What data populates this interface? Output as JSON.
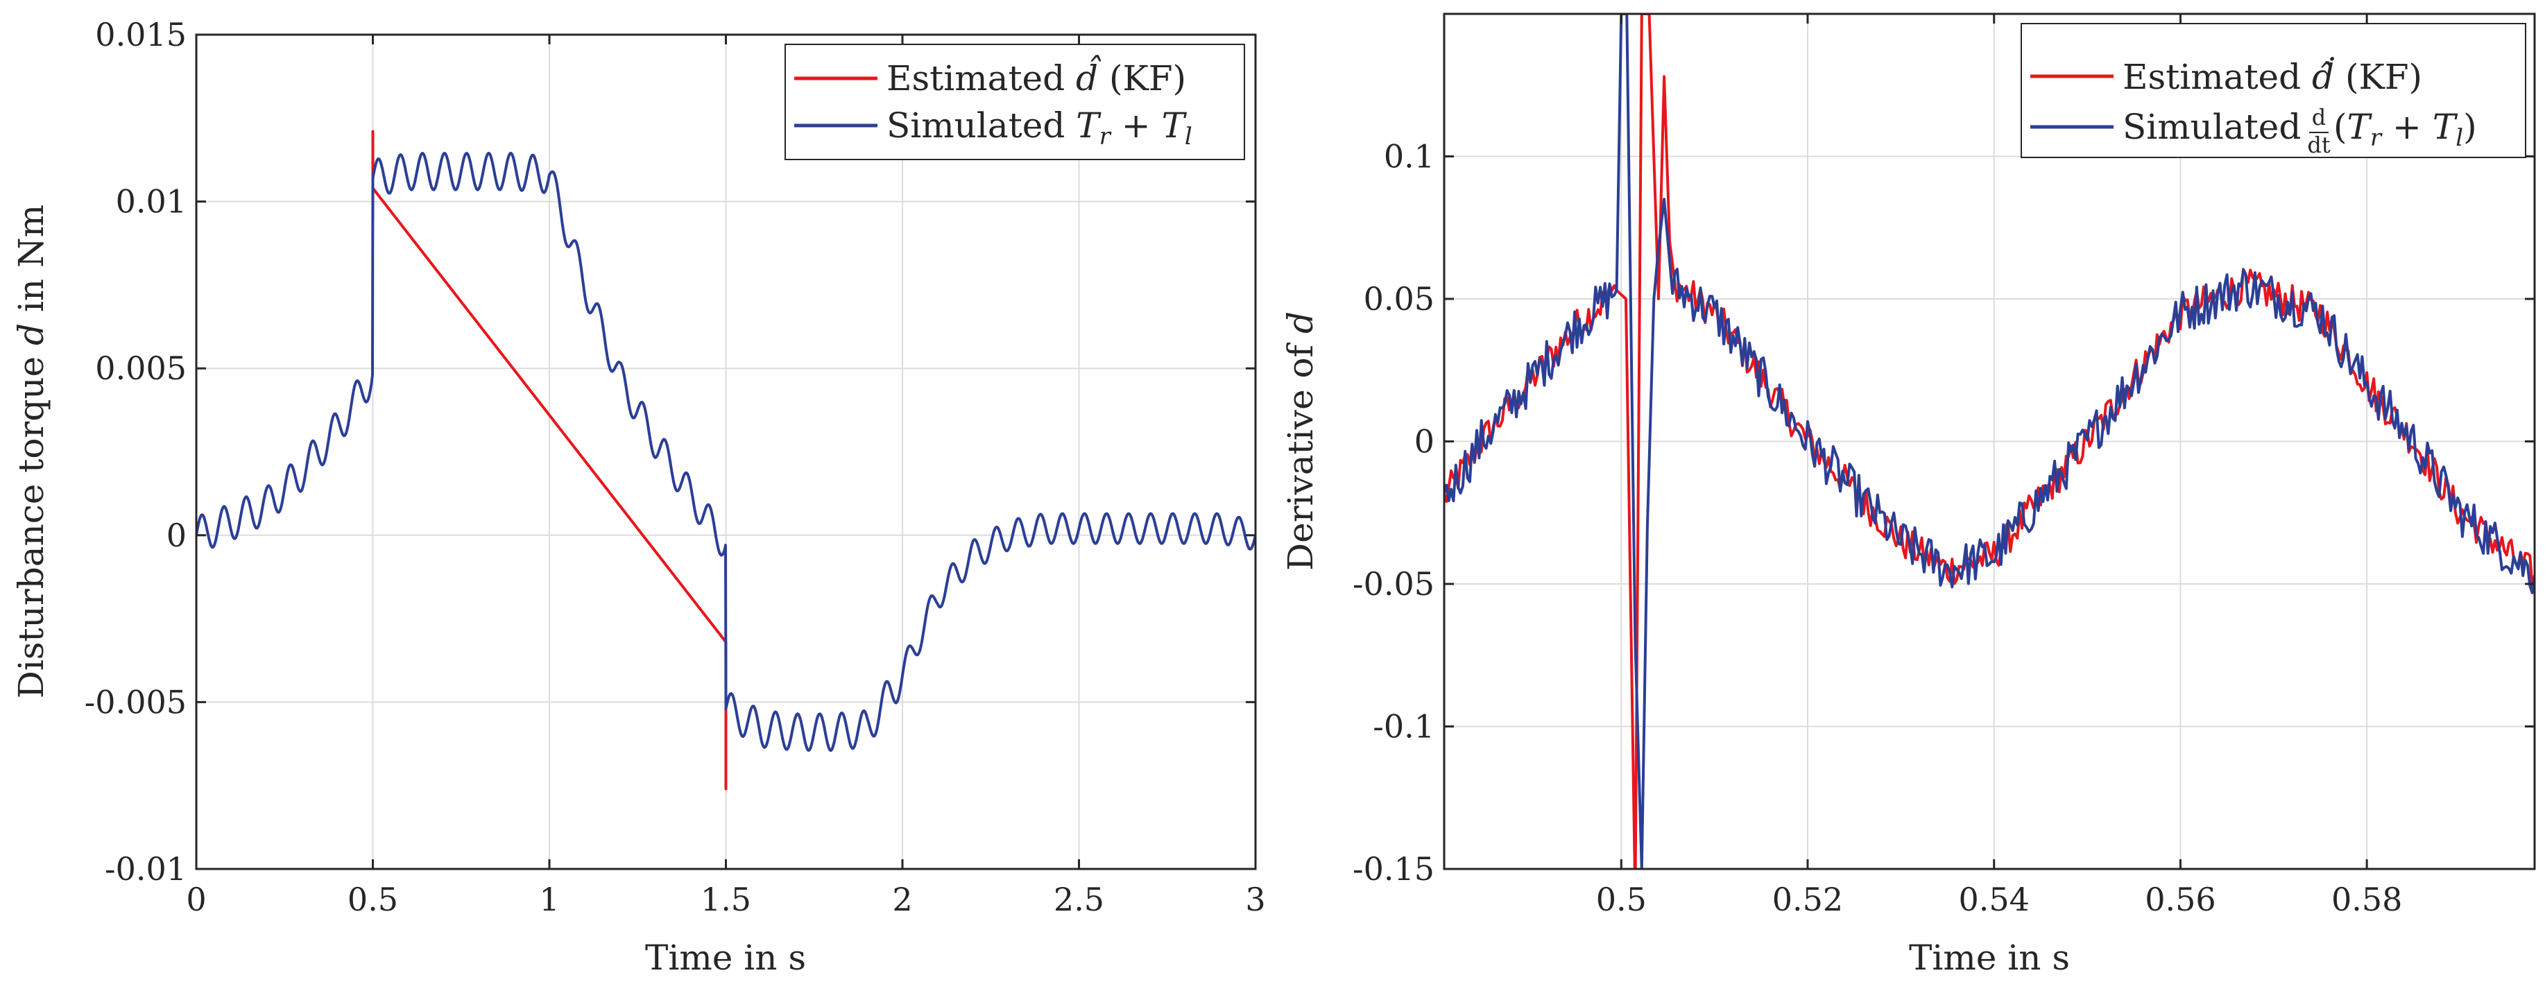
{
  "colors": {
    "estimated": "#e8161c",
    "simulated": "#2b3f96"
  },
  "chart_data": [
    {
      "type": "line",
      "id": "left",
      "xlabel": "Time in s",
      "ylabel": "Disturbance torque d in Nm",
      "ylabel_parts": {
        "pre": "Disturbance torque ",
        "var": "d",
        "post": " in Nm"
      },
      "xlim": [
        0,
        3
      ],
      "ylim": [
        -0.01,
        0.015
      ],
      "xticks": [
        0,
        0.5,
        1,
        1.5,
        2,
        2.5,
        3
      ],
      "xtick_labels": [
        "0",
        "0.5",
        "1",
        "1.5",
        "2",
        "2.5",
        "3"
      ],
      "yticks": [
        -0.01,
        -0.005,
        0,
        0.005,
        0.01,
        0.015
      ],
      "ytick_labels": [
        "-0.01",
        "-0.005",
        "0",
        "0.005",
        "0.01",
        "0.015"
      ],
      "legend_position": "top-right",
      "grid": true,
      "series": [
        {
          "name": "Estimated d̂ (KF)",
          "legend_parts": [
            "Estimated ",
            "d̂",
            " (KF)"
          ],
          "color_key": "estimated",
          "x": [
            0.5,
            0.5,
            0.5,
            1.5,
            1.5,
            1.5
          ],
          "y": [
            0.0095,
            0.0121,
            0.0104,
            -0.0032,
            -0.0076,
            -0.0051
          ]
        },
        {
          "name": "Simulated T_r + T_l",
          "legend_parts": [
            "Simulated ",
            "T",
            "r",
            " + ",
            "T",
            "l"
          ],
          "color_key": "simulated",
          "x": [
            0,
            0.1,
            0.2,
            0.3,
            0.4,
            0.499,
            0.5,
            0.6,
            0.7,
            0.8,
            0.9,
            1.0,
            1.1,
            1.2,
            1.3,
            1.4,
            1.499,
            1.5,
            1.6,
            1.7,
            1.8,
            1.9,
            2.0,
            2.1,
            2.2,
            2.3,
            2.4,
            2.5,
            2.6,
            2.7,
            2.8,
            2.9,
            3.0
          ],
          "y": [
            0,
            0.0004,
            0.0009,
            0.0019,
            0.0032,
            0.0048,
            0.0107,
            0.0109,
            0.0109,
            0.0109,
            0.0109,
            0.0108,
            0.0075,
            0.0047,
            0.0028,
            0.0012,
            -0.0003,
            -0.0052,
            -0.0058,
            -0.0059,
            -0.0059,
            -0.0058,
            -0.0042,
            -0.0018,
            -0.0006,
            0.0,
            0.0002,
            0.0002,
            0.0002,
            0.0002,
            0.0002,
            0.0002,
            0.0
          ]
        }
      ]
    },
    {
      "type": "line",
      "id": "right",
      "xlabel": "Time in s",
      "ylabel": "Derivative of d",
      "ylabel_parts": {
        "pre": "Derivative of ",
        "var": "d",
        "post": ""
      },
      "xlim": [
        0.481,
        0.598
      ],
      "ylim": [
        -0.15,
        0.15
      ],
      "xticks": [
        0.5,
        0.52,
        0.54,
        0.56,
        0.58
      ],
      "xtick_labels": [
        "0.5",
        "0.52",
        "0.54",
        "0.56",
        "0.58"
      ],
      "yticks": [
        -0.15,
        -0.1,
        -0.05,
        0,
        0.05,
        0.1
      ],
      "ytick_labels": [
        "-0.15",
        "-0.1",
        "-0.05",
        "0",
        "0.05",
        "0.1"
      ],
      "legend_position": "top-right",
      "grid": true,
      "series": [
        {
          "name": "Estimated d-hat-dot (KF)",
          "legend_parts": [
            "Estimated ",
            "ḋ̂",
            " (KF)"
          ],
          "color_key": "estimated",
          "x": [
            0.481,
            0.485,
            0.49,
            0.495,
            0.4995,
            0.5005,
            0.5015,
            0.5022,
            0.503,
            0.504,
            0.5046,
            0.5052,
            0.506,
            0.51,
            0.52,
            0.53,
            0.535,
            0.54,
            0.55,
            0.56,
            0.567,
            0.575,
            0.58,
            0.585,
            0.59,
            0.598
          ],
          "y": [
            -0.02,
            0.0,
            0.02,
            0.04,
            0.053,
            0.05,
            -0.16,
            0.15,
            0.15,
            0.05,
            0.128,
            0.07,
            0.055,
            0.045,
            0.0,
            -0.035,
            -0.045,
            -0.04,
            0.0,
            0.045,
            0.055,
            0.045,
            0.02,
            0.0,
            -0.025,
            -0.047
          ]
        },
        {
          "name": "Simulated d/dt (T_r + T_l)",
          "legend_parts": [
            "Simulated ",
            "d",
            "dt",
            "(",
            "T",
            "r",
            " + ",
            "T",
            "l",
            ")"
          ],
          "color_key": "simulated",
          "x": [
            0.481,
            0.485,
            0.49,
            0.495,
            0.4995,
            0.5,
            0.5006,
            0.5015,
            0.5022,
            0.5028,
            0.5035,
            0.504,
            0.5046,
            0.5055,
            0.51,
            0.52,
            0.53,
            0.535,
            0.54,
            0.55,
            0.56,
            0.567,
            0.575,
            0.58,
            0.585,
            0.59,
            0.598
          ],
          "y": [
            -0.02,
            0.0,
            0.02,
            0.04,
            0.053,
            0.15,
            0.15,
            -0.07,
            -0.15,
            -0.03,
            0.05,
            0.068,
            0.085,
            0.055,
            0.045,
            0.0,
            -0.035,
            -0.045,
            -0.04,
            0.0,
            0.045,
            0.055,
            0.045,
            0.02,
            0.0,
            -0.025,
            -0.047
          ]
        }
      ]
    }
  ]
}
